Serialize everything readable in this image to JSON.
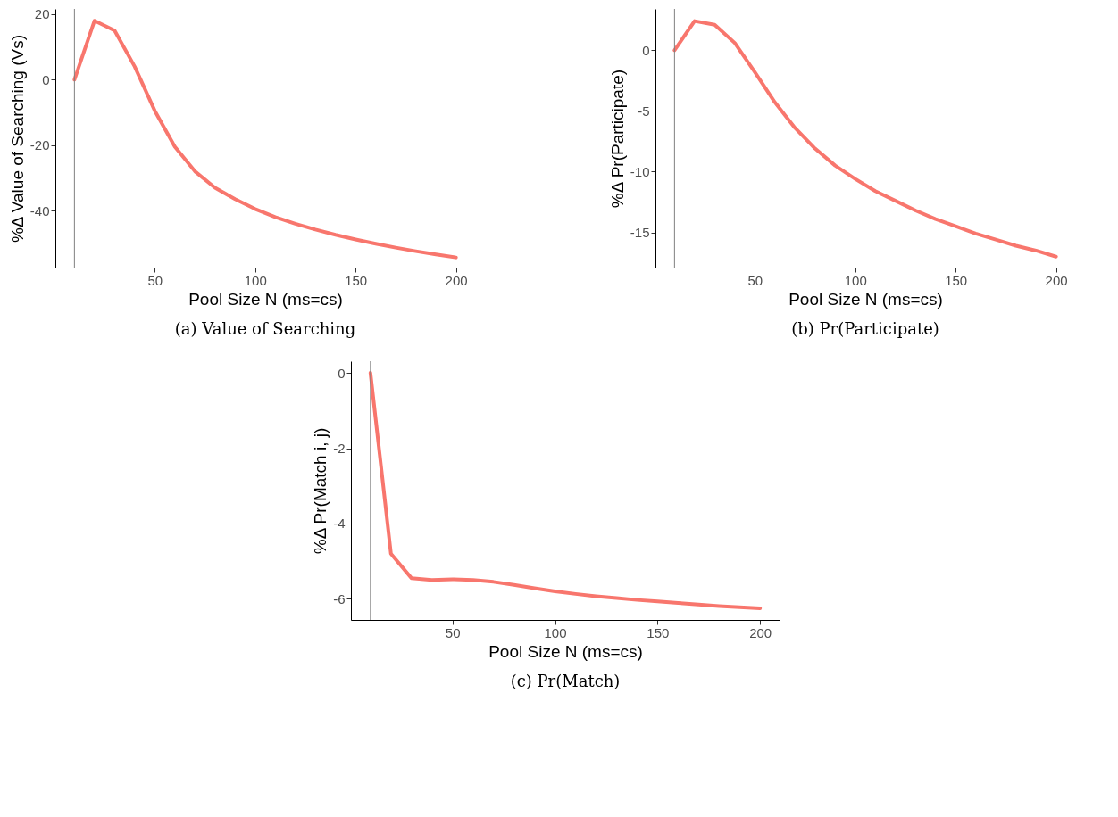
{
  "chart_data": [
    {
      "type": "line",
      "title": "(a) Value of Searching",
      "xlabel": "Pool Size N (ms=cs)",
      "ylabel": "%Δ Value of Searching (Vs)",
      "x": [
        10,
        20,
        30,
        40,
        50,
        60,
        70,
        80,
        90,
        100,
        110,
        120,
        130,
        140,
        150,
        160,
        170,
        180,
        190,
        200
      ],
      "series": [
        {
          "color": "#f8766d",
          "values": [
            0,
            18,
            15,
            4,
            -9.5,
            -20.5,
            -28,
            -33,
            -36.5,
            -39.5,
            -42,
            -44,
            -45.8,
            -47.4,
            -48.8,
            -50.1,
            -51.3,
            -52.4,
            -53.4,
            -54.3
          ]
        }
      ],
      "xlim": [
        0.5,
        209.5
      ],
      "ylim": [
        -57.4,
        21.6
      ],
      "xticks": [
        50,
        100,
        150,
        200
      ],
      "yticks": [
        -40,
        -20,
        0,
        20
      ],
      "ref_lines": [
        {
          "axis": "x",
          "value": 10,
          "color": "#808080"
        }
      ],
      "grid": false,
      "legend": false
    },
    {
      "type": "line",
      "title": "(b) Pr(Participate)",
      "xlabel": "Pool Size N (ms=cs)",
      "ylabel": "%Δ Pr(Participate)",
      "x": [
        10,
        20,
        30,
        40,
        50,
        60,
        70,
        80,
        90,
        100,
        110,
        120,
        130,
        140,
        150,
        160,
        170,
        180,
        190,
        200
      ],
      "series": [
        {
          "color": "#f8766d",
          "values": [
            0,
            2.4,
            2.1,
            0.6,
            -1.8,
            -4.3,
            -6.4,
            -8.1,
            -9.5,
            -10.6,
            -11.6,
            -12.4,
            -13.2,
            -13.9,
            -14.5,
            -15.1,
            -15.6,
            -16.1,
            -16.5,
            -17.0
          ]
        }
      ],
      "xlim": [
        0.5,
        209.5
      ],
      "ylim": [
        -17.9,
        3.4
      ],
      "xticks": [
        50,
        100,
        150,
        200
      ],
      "yticks": [
        -15,
        -10,
        -5,
        0
      ],
      "ref_lines": [
        {
          "axis": "x",
          "value": 10,
          "color": "#808080"
        }
      ],
      "grid": false,
      "legend": false
    },
    {
      "type": "line",
      "title": "(c) Pr(Match)",
      "xlabel": "Pool Size N (ms=cs)",
      "ylabel": "%Δ Pr(Match i, j)",
      "x": [
        10,
        20,
        30,
        40,
        50,
        60,
        70,
        80,
        90,
        100,
        110,
        120,
        130,
        140,
        150,
        160,
        170,
        180,
        190,
        200
      ],
      "series": [
        {
          "color": "#f8766d",
          "values": [
            0,
            -4.8,
            -5.45,
            -5.5,
            -5.48,
            -5.5,
            -5.55,
            -5.63,
            -5.72,
            -5.8,
            -5.87,
            -5.93,
            -5.98,
            -6.03,
            -6.07,
            -6.11,
            -6.15,
            -6.19,
            -6.22,
            -6.25
          ]
        }
      ],
      "xlim": [
        0.5,
        209.5
      ],
      "ylim": [
        -6.56,
        0.31
      ],
      "xticks": [
        50,
        100,
        150,
        200
      ],
      "yticks": [
        -6,
        -4,
        -2,
        0
      ],
      "ref_lines": [
        {
          "axis": "x",
          "value": 10,
          "color": "#808080"
        }
      ],
      "grid": false,
      "legend": false
    }
  ]
}
